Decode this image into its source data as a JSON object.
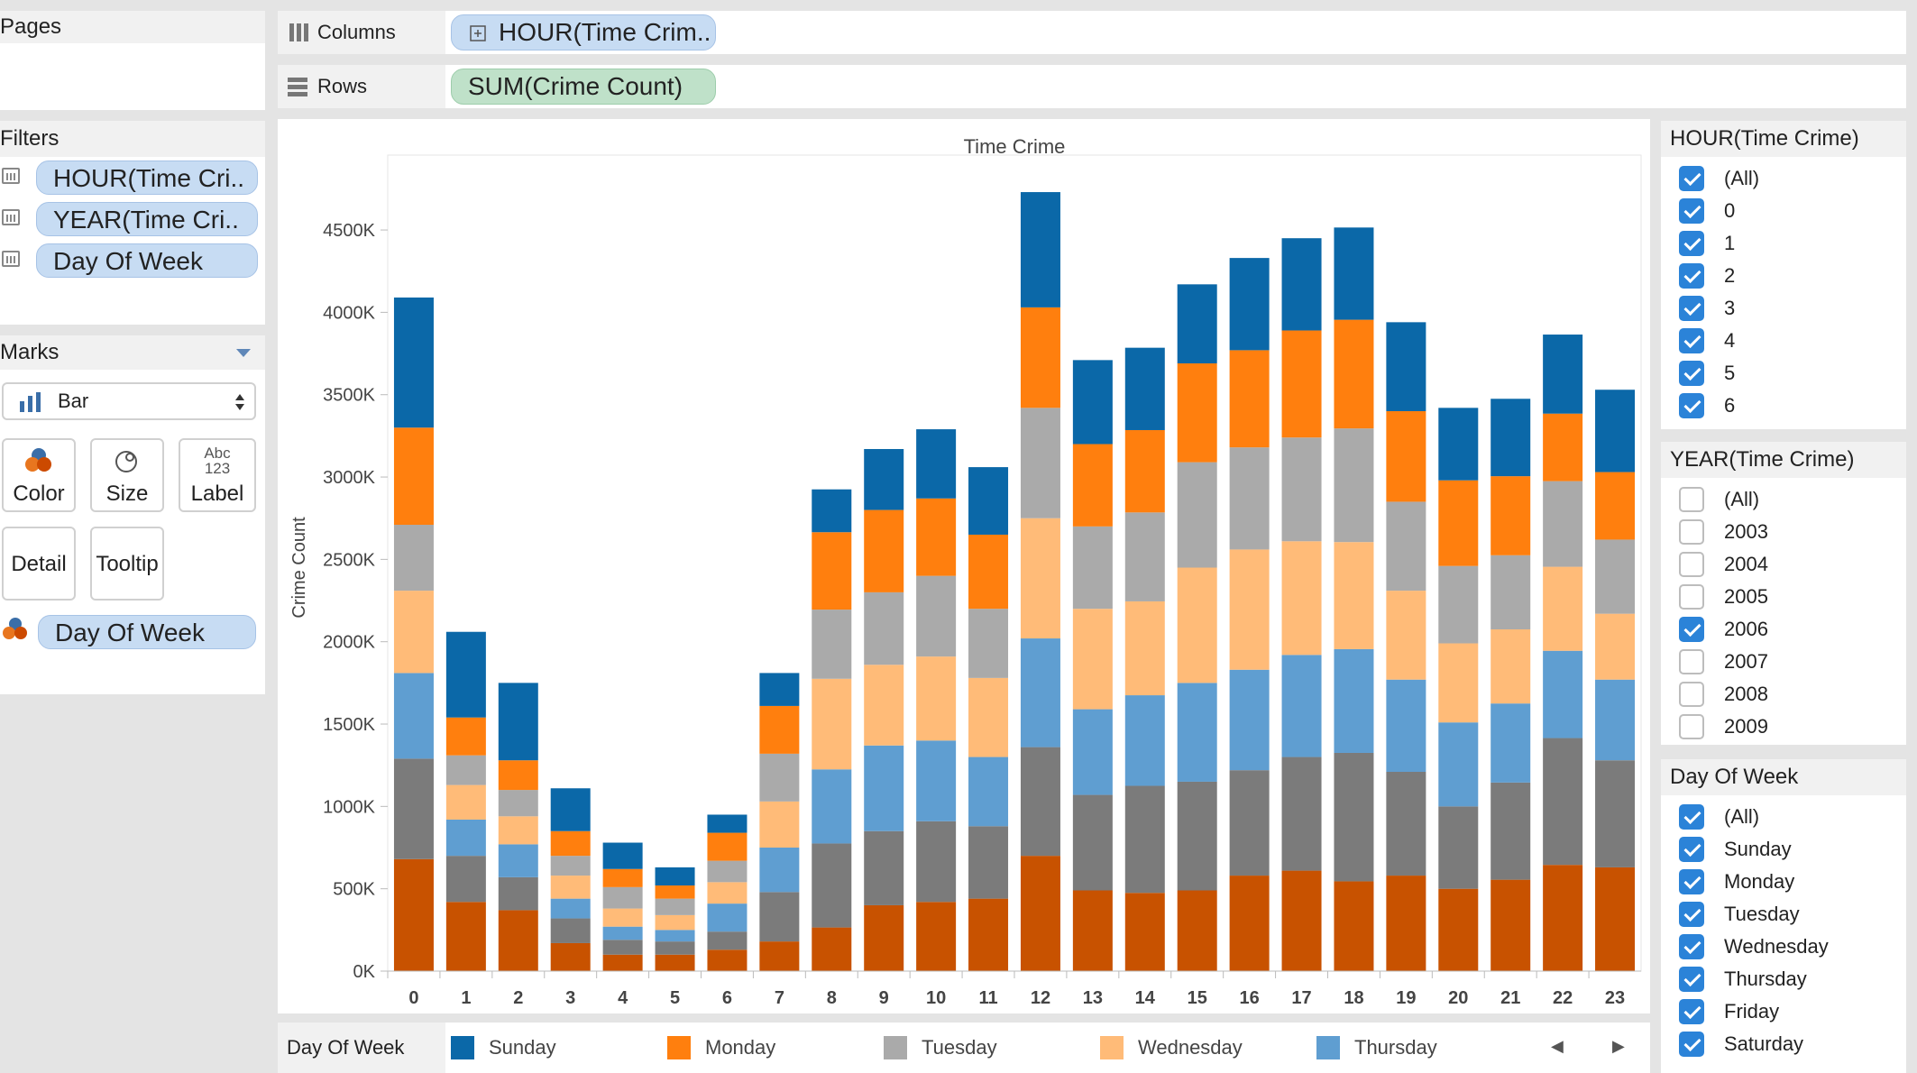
{
  "shelves": {
    "pages_title": "Pages",
    "columns_label": "Columns",
    "columns_pill": "HOUR(Time Crim..",
    "rows_label": "Rows",
    "rows_pill": "SUM(Crime Count)"
  },
  "filters": {
    "title": "Filters",
    "items": [
      "HOUR(Time Cri..",
      "YEAR(Time Cri..",
      "Day Of Week"
    ]
  },
  "marks": {
    "title": "Marks",
    "type": "Bar",
    "buttons": {
      "color": "Color",
      "size": "Size",
      "label": "Label",
      "label_icon": "Abc 123",
      "detail": "Detail",
      "tooltip": "Tooltip"
    },
    "color_pill": "Day Of Week"
  },
  "hour_filter": {
    "title": "HOUR(Time Crime)",
    "items": [
      {
        "label": "(All)",
        "checked": true
      },
      {
        "label": "0",
        "checked": true
      },
      {
        "label": "1",
        "checked": true
      },
      {
        "label": "2",
        "checked": true
      },
      {
        "label": "3",
        "checked": true
      },
      {
        "label": "4",
        "checked": true
      },
      {
        "label": "5",
        "checked": true
      },
      {
        "label": "6",
        "checked": true
      }
    ]
  },
  "year_filter": {
    "title": "YEAR(Time Crime)",
    "items": [
      {
        "label": "(All)",
        "checked": false
      },
      {
        "label": "2003",
        "checked": false
      },
      {
        "label": "2004",
        "checked": false
      },
      {
        "label": "2005",
        "checked": false
      },
      {
        "label": "2006",
        "checked": true
      },
      {
        "label": "2007",
        "checked": false
      },
      {
        "label": "2008",
        "checked": false
      },
      {
        "label": "2009",
        "checked": false
      }
    ]
  },
  "dow_filter": {
    "title": "Day Of Week",
    "items": [
      {
        "label": "(All)",
        "checked": true
      },
      {
        "label": "Sunday",
        "checked": true
      },
      {
        "label": "Monday",
        "checked": true
      },
      {
        "label": "Tuesday",
        "checked": true
      },
      {
        "label": "Wednesday",
        "checked": true
      },
      {
        "label": "Thursday",
        "checked": true
      },
      {
        "label": "Friday",
        "checked": true
      },
      {
        "label": "Saturday",
        "checked": true
      }
    ]
  },
  "legend": {
    "title": "Day Of Week",
    "items": [
      {
        "label": "Sunday",
        "color": "#0b68a8"
      },
      {
        "label": "Monday",
        "color": "#ff7f0e"
      },
      {
        "label": "Tuesday",
        "color": "#aaaaaa"
      },
      {
        "label": "Wednesday",
        "color": "#ffbb78"
      },
      {
        "label": "Thursday",
        "color": "#5f9ed1"
      }
    ],
    "prev_icon": "◀",
    "next_icon": "▶"
  },
  "chart_data": {
    "type": "bar",
    "stacked": true,
    "title": "Time Crime",
    "xlabel": "",
    "ylabel": "Crime Count",
    "ylim": [
      0,
      4900000
    ],
    "yticks": [
      0,
      500000,
      1000000,
      1500000,
      2000000,
      2500000,
      3000000,
      3500000,
      4000000,
      4500000
    ],
    "ytick_labels": [
      "0K",
      "500K",
      "1000K",
      "1500K",
      "2000K",
      "2500K",
      "3000K",
      "3500K",
      "4000K",
      "4500K"
    ],
    "categories": [
      "0",
      "1",
      "2",
      "3",
      "4",
      "5",
      "6",
      "7",
      "8",
      "9",
      "10",
      "11",
      "12",
      "13",
      "14",
      "15",
      "16",
      "17",
      "18",
      "19",
      "20",
      "21",
      "22",
      "23"
    ],
    "series": [
      {
        "color": "#c85200",
        "values": [
          680000,
          420000,
          370000,
          170000,
          100000,
          100000,
          130000,
          180000,
          265000,
          400000,
          420000,
          440000,
          700000,
          490000,
          475000,
          490000,
          580000,
          610000,
          545000,
          580000,
          500000,
          555000,
          645000,
          630000
        ]
      },
      {
        "color": "#7b7b7b",
        "values": [
          610000,
          280000,
          200000,
          150000,
          90000,
          80000,
          110000,
          300000,
          510000,
          450000,
          490000,
          440000,
          660000,
          580000,
          650000,
          660000,
          640000,
          690000,
          780000,
          630000,
          500000,
          590000,
          770000,
          650000
        ]
      },
      {
        "name": "Thursday",
        "color": "#5f9ed1",
        "values": [
          520000,
          220000,
          200000,
          120000,
          80000,
          70000,
          170000,
          270000,
          450000,
          520000,
          490000,
          420000,
          660000,
          520000,
          550000,
          600000,
          610000,
          620000,
          630000,
          560000,
          510000,
          480000,
          530000,
          490000
        ]
      },
      {
        "name": "Wednesday",
        "color": "#ffbb78",
        "values": [
          500000,
          210000,
          170000,
          140000,
          110000,
          90000,
          130000,
          280000,
          550000,
          490000,
          510000,
          480000,
          730000,
          610000,
          570000,
          700000,
          730000,
          690000,
          650000,
          540000,
          480000,
          450000,
          510000,
          400000
        ]
      },
      {
        "name": "Tuesday",
        "color": "#aaaaaa",
        "values": [
          400000,
          180000,
          160000,
          120000,
          130000,
          100000,
          130000,
          290000,
          420000,
          440000,
          490000,
          420000,
          670000,
          500000,
          540000,
          640000,
          620000,
          630000,
          690000,
          540000,
          470000,
          450000,
          520000,
          450000
        ]
      },
      {
        "name": "Monday",
        "color": "#ff7f0e",
        "values": [
          590000,
          230000,
          180000,
          150000,
          110000,
          80000,
          170000,
          290000,
          470000,
          500000,
          470000,
          450000,
          610000,
          500000,
          500000,
          600000,
          590000,
          650000,
          660000,
          550000,
          520000,
          480000,
          410000,
          410000
        ]
      },
      {
        "name": "Sunday",
        "color": "#0b68a8",
        "values": [
          790000,
          520000,
          470000,
          260000,
          160000,
          110000,
          110000,
          200000,
          260000,
          370000,
          420000,
          410000,
          700000,
          510000,
          500000,
          480000,
          560000,
          560000,
          560000,
          540000,
          440000,
          470000,
          480000,
          500000
        ]
      }
    ]
  }
}
